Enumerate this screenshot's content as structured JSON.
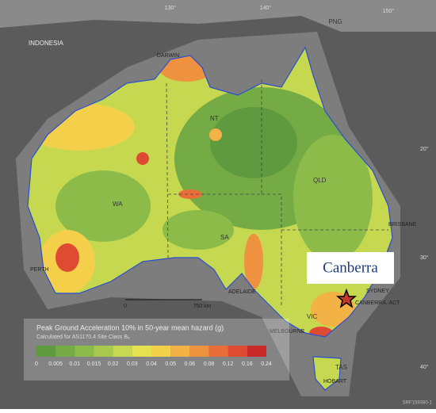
{
  "map": {
    "graticule": {
      "top": [
        "130°",
        "140°",
        "150°"
      ],
      "right": [
        "20°",
        "30°",
        "40°"
      ]
    },
    "places": {
      "indonesia": "INDONESIA",
      "png": "PNG",
      "darwin": "DARWIN",
      "nt": "NT",
      "wa": "WA",
      "qld": "QLD",
      "sa": "SA",
      "brisbane": "BRISBANE",
      "perth": "PERTH",
      "adelaide": "ADELAIDE",
      "sydney": "SYDNEY",
      "canberra": "CANBERRA, ACT",
      "vic": "VIC",
      "melbourne": "MELBOURNE",
      "tas": "TAS",
      "hobart": "HOBART"
    },
    "callout": "Canberra",
    "scale_bar": {
      "start": "0",
      "end": "750 km"
    },
    "legend": {
      "title": "Peak Ground Acceleration 10% in 50-year mean hazard (g)",
      "subtitle": "Calculated for AS1170.4 Site Class Bₑ",
      "labels": [
        "0",
        "0.005",
        "0.01",
        "0.015",
        "0.02",
        "0.03",
        "0.04",
        "0.05",
        "0.06",
        "0.08",
        "0.12",
        "0.16",
        "0.24"
      ],
      "colors": [
        "#5f9a3e",
        "#74ab45",
        "#8dbb4a",
        "#a8c94e",
        "#c5d84f",
        "#e5e24f",
        "#f4d04a",
        "#f2b246",
        "#ef9240",
        "#e86d3a",
        "#df4a33",
        "#c82a2a"
      ]
    },
    "code": "SRF159380-1"
  }
}
